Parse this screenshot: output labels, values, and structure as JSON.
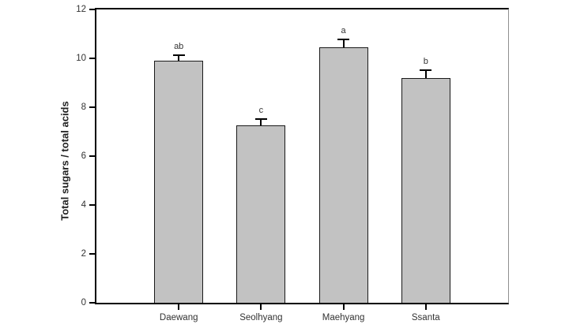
{
  "figure": {
    "background": "#ffffff"
  },
  "chart_data": {
    "type": "bar",
    "title": "",
    "xlabel": "",
    "ylabel": "Total sugars / total acids",
    "categories": [
      "Daewang",
      "Seolhyang",
      "Maehyang",
      "Ssanta"
    ],
    "values": [
      9.9,
      7.25,
      10.45,
      9.2
    ],
    "error_bars_upper": [
      0.25,
      0.3,
      0.35,
      0.35
    ],
    "sig_letters": [
      "ab",
      "c",
      "a",
      "b"
    ],
    "ylim": [
      0,
      12
    ],
    "yticks": [
      0,
      2,
      4,
      6,
      8,
      10,
      12
    ],
    "grid": false,
    "legend": false,
    "bar_fill_color": "#c2c2c2",
    "bar_border_color": "#1a1a1a",
    "axis_color": "#000000",
    "text_color": "#333333"
  }
}
